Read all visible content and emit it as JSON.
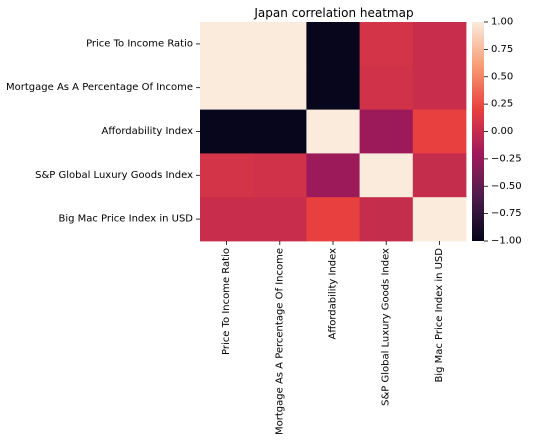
{
  "chart_data": {
    "type": "heatmap",
    "title": "Japan correlation heatmap",
    "row_labels": [
      "Price To Income Ratio",
      "Mortgage As A Percentage Of Income",
      "Affordability Index",
      "S&P Global Luxury Goods Index",
      "Big Mac Price Index in USD"
    ],
    "col_labels": [
      "Price To Income Ratio",
      "Mortgage As A Percentage Of Income",
      "Affordability Index",
      "S&P Global Luxury Goods Index",
      "Big Mac Price Index in USD"
    ],
    "values": [
      [
        1.0,
        1.0,
        -0.98,
        0.08,
        0.02
      ],
      [
        1.0,
        1.0,
        -0.98,
        0.06,
        0.02
      ],
      [
        -0.98,
        -0.98,
        1.0,
        -0.22,
        0.2
      ],
      [
        0.08,
        0.06,
        -0.22,
        1.0,
        0.0
      ],
      [
        0.02,
        0.02,
        0.2,
        0.0,
        1.0
      ]
    ],
    "colorbar": {
      "range": [
        -1.0,
        1.0
      ],
      "ticks": [
        "1.00",
        "0.75",
        "0.50",
        "0.25",
        "0.00",
        "−0.25",
        "−0.50",
        "−0.75",
        "−1.00"
      ],
      "tick_values": [
        1.0,
        0.75,
        0.5,
        0.25,
        0.0,
        -0.25,
        -0.5,
        -0.75,
        -1.0
      ],
      "colormap": "rocket",
      "colormap_stops": [
        "#03051a",
        "#4c1d4b",
        "#a11a5b",
        "#e83f3f",
        "#f69c73",
        "#faebdd"
      ]
    }
  }
}
